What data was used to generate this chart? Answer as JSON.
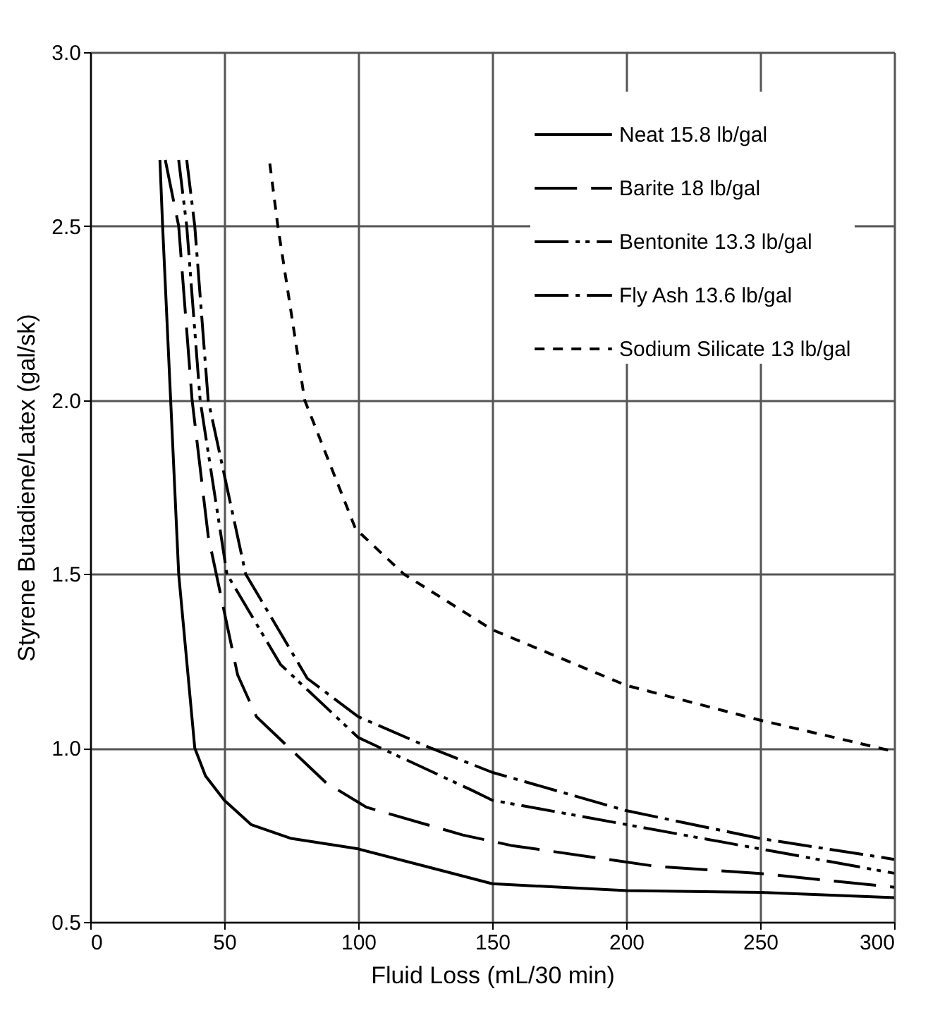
{
  "chart_data": {
    "type": "line",
    "xlabel": "Fluid Loss (mL/30 min)",
    "ylabel": "Styrene Butadiene/Latex (gal/sk)",
    "xlim": [
      0,
      300
    ],
    "xticks": [
      0,
      50,
      100,
      150,
      200,
      250,
      300
    ],
    "ylim": [
      0.5,
      3.0
    ],
    "yticks": [
      0.5,
      {
        "value": 1,
        "label": "1.0"
      },
      1.5,
      {
        "value": 2,
        "label": "2.0"
      },
      2.5,
      {
        "value": 3,
        "label": "3.0"
      }
    ],
    "grid": true,
    "legend": "top right",
    "marker": "none",
    "series": [
      {
        "name": "Neat 15.8 lb/gal",
        "color": "#000000",
        "line_style": "solid",
        "x": [
          26,
          27,
          30,
          33,
          39,
          43,
          50,
          60,
          75,
          100,
          125,
          150,
          200,
          250,
          300
        ],
        "values": [
          2.69,
          2.5,
          2.0,
          1.5,
          1.0,
          0.92,
          0.85,
          0.78,
          0.74,
          0.71,
          0.66,
          0.61,
          0.59,
          0.585,
          0.57
        ]
      },
      {
        "name": "Barite 18 lb/gal",
        "color": "#000000",
        "line_style": "dashed",
        "x": [
          28,
          33,
          38,
          44,
          55,
          62,
          88,
          103,
          139,
          157,
          193,
          211,
          249,
          300
        ],
        "values": [
          2.69,
          2.5,
          2.0,
          1.61,
          1.21,
          1.09,
          0.9,
          0.83,
          0.75,
          0.72,
          0.68,
          0.66,
          0.64,
          0.6
        ]
      },
      {
        "name": "Bentonite 13.3 lb/gal",
        "color": "#000000",
        "line_style": "dashed",
        "x": [
          33,
          36,
          41,
          51,
          71,
          100,
          142,
          150,
          200,
          250,
          300
        ],
        "values": [
          2.69,
          2.5,
          2.0,
          1.5,
          1.24,
          1.03,
          0.88,
          0.85,
          0.78,
          0.71,
          0.64
        ]
      },
      {
        "name": "Fly Ash 13.6 lb/gal",
        "color": "#000000",
        "line_style": "dashed",
        "x": [
          36,
          39,
          44,
          58,
          81,
          100,
          127,
          150,
          200,
          250,
          300
        ],
        "values": [
          2.69,
          2.5,
          2.0,
          1.5,
          1.2,
          1.09,
          1.0,
          0.93,
          0.82,
          0.74,
          0.68
        ]
      },
      {
        "name": "Sodium Silicate 13 lb/gal",
        "color": "#000000",
        "line_style": "dashed",
        "x": [
          67,
          70,
          80,
          99,
          117,
          150,
          200,
          250,
          300
        ],
        "values": [
          2.68,
          2.5,
          2.0,
          1.63,
          1.5,
          1.34,
          1.18,
          1.08,
          0.99
        ]
      }
    ]
  }
}
